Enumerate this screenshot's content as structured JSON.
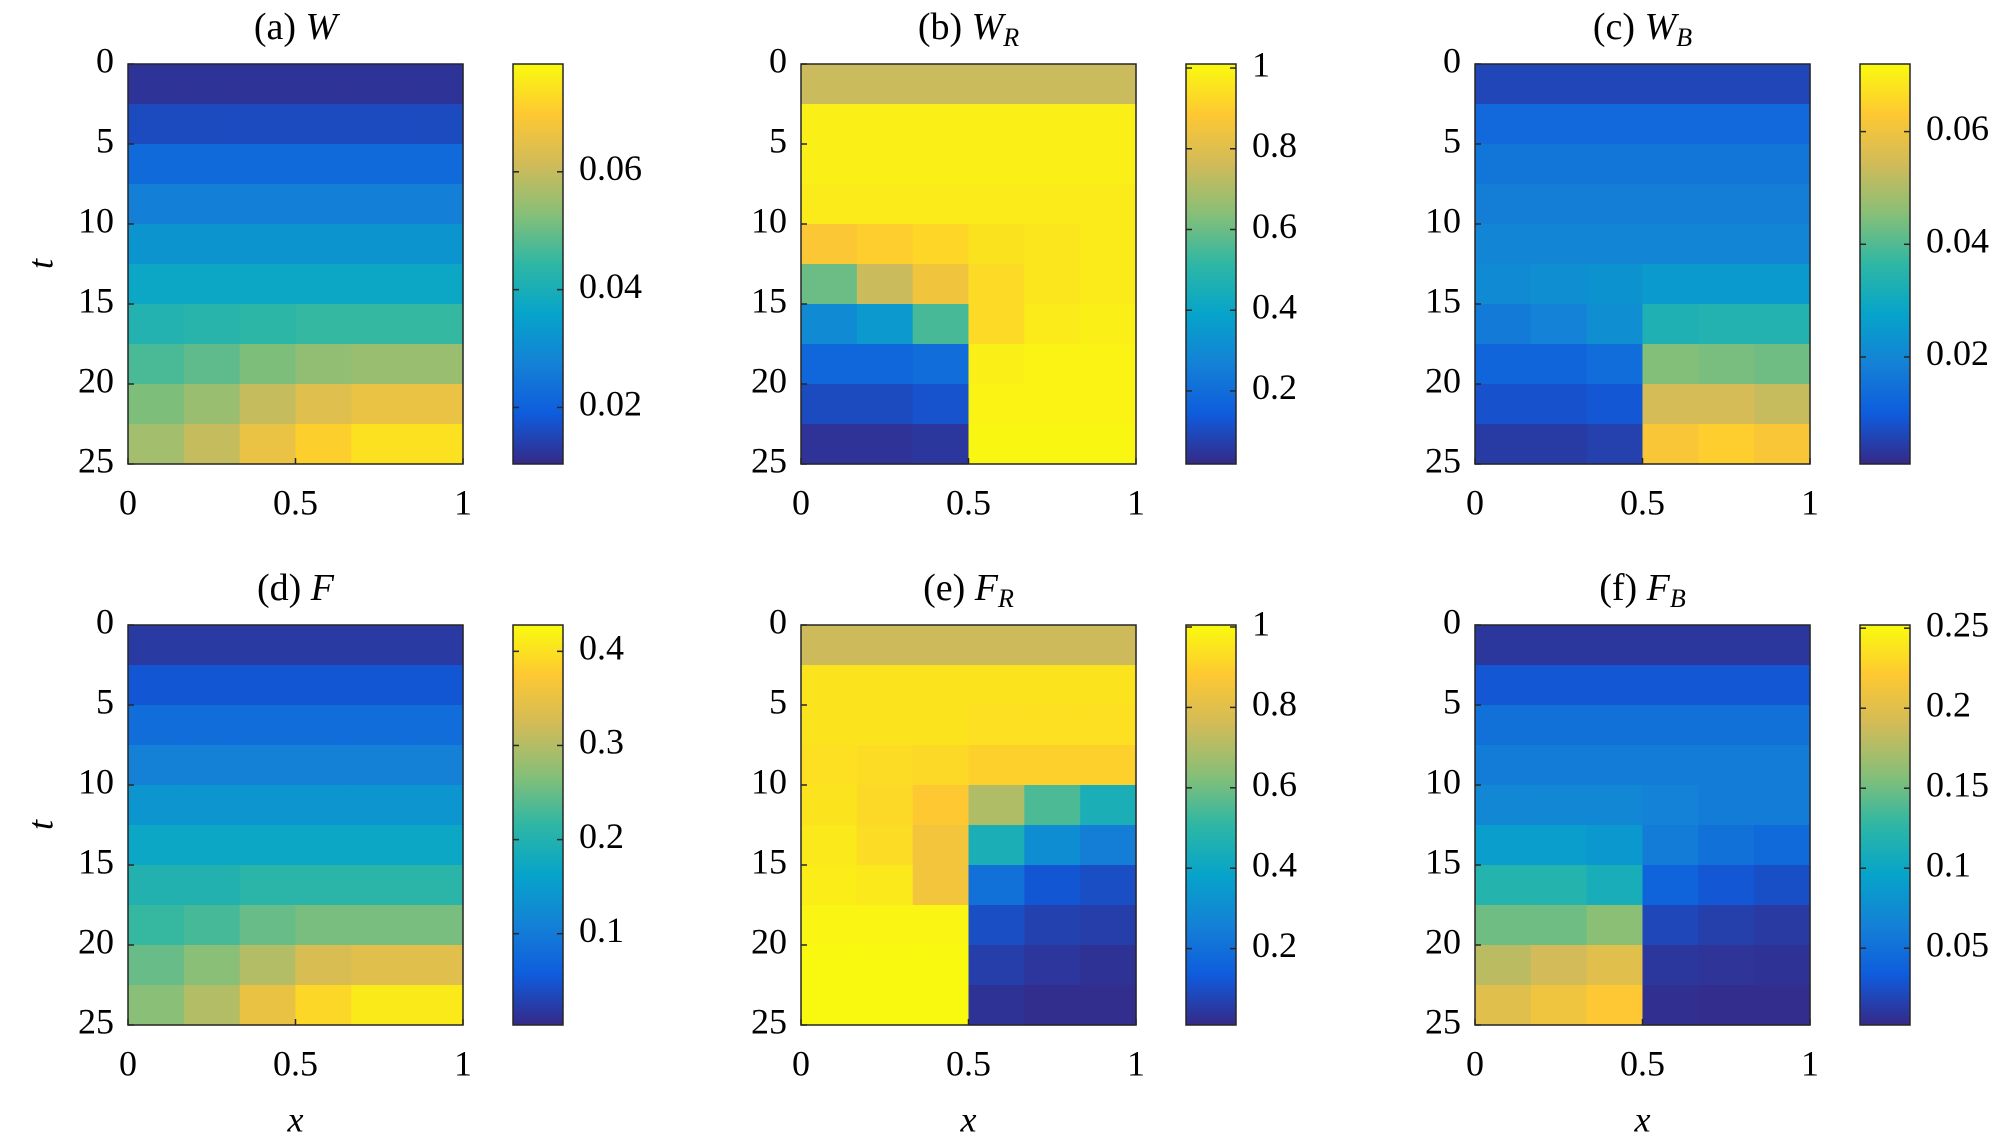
{
  "chart_data": [
    {
      "type": "heatmap",
      "title": {
        "label": "(a)",
        "symbol": "W"
      },
      "ylabel": "t",
      "colormap": "parula",
      "x": [
        0.0833,
        0.25,
        0.4167,
        0.5833,
        0.75,
        0.9167
      ],
      "y": [
        1.25,
        3.75,
        6.25,
        8.75,
        11.25,
        13.75,
        16.25,
        18.75,
        21.25,
        23.75
      ],
      "xlim": [
        0,
        1
      ],
      "ylim": [
        0,
        25
      ],
      "y_reversed": true,
      "xticks": [
        0,
        0.5,
        1
      ],
      "yticks": [
        0,
        5,
        10,
        15,
        20,
        25
      ],
      "clim": [
        0.0104,
        0.0783
      ],
      "cticks": [
        0.02,
        0.04,
        0.06
      ],
      "z": [
        [
          0.012,
          0.012,
          0.012,
          0.012,
          0.012,
          0.012
        ],
        [
          0.016,
          0.016,
          0.016,
          0.016,
          0.016,
          0.016
        ],
        [
          0.022,
          0.022,
          0.022,
          0.022,
          0.022,
          0.022
        ],
        [
          0.027,
          0.027,
          0.027,
          0.027,
          0.027,
          0.027
        ],
        [
          0.032,
          0.032,
          0.032,
          0.032,
          0.032,
          0.032
        ],
        [
          0.037,
          0.037,
          0.037,
          0.037,
          0.037,
          0.037
        ],
        [
          0.042,
          0.043,
          0.044,
          0.045,
          0.045,
          0.045
        ],
        [
          0.047,
          0.049,
          0.052,
          0.054,
          0.055,
          0.055
        ],
        [
          0.052,
          0.055,
          0.06,
          0.064,
          0.066,
          0.066
        ],
        [
          0.056,
          0.06,
          0.066,
          0.071,
          0.074,
          0.074
        ]
      ]
    },
    {
      "type": "heatmap",
      "title": {
        "label": "(b)",
        "symbol": "W",
        "subscript": "R"
      },
      "colormap": "parula",
      "x": [
        0.0833,
        0.25,
        0.4167,
        0.5833,
        0.75,
        0.9167
      ],
      "y": [
        1.25,
        3.75,
        6.25,
        8.75,
        11.25,
        13.75,
        16.25,
        18.75,
        21.25,
        23.75
      ],
      "xlim": [
        0,
        1
      ],
      "ylim": [
        0,
        25
      ],
      "y_reversed": true,
      "xticks": [
        0,
        0.5,
        1
      ],
      "yticks": [
        0,
        5,
        10,
        15,
        20,
        25
      ],
      "clim": [
        0.019,
        1.01
      ],
      "cticks": [
        0.2,
        0.4,
        0.6,
        0.8,
        1
      ],
      "z": [
        [
          0.75,
          0.75,
          0.75,
          0.75,
          0.75,
          0.75
        ],
        [
          0.98,
          0.98,
          0.98,
          0.98,
          0.98,
          0.98
        ],
        [
          0.98,
          0.98,
          0.98,
          0.98,
          0.98,
          0.98
        ],
        [
          0.97,
          0.97,
          0.97,
          0.97,
          0.97,
          0.97
        ],
        [
          0.88,
          0.9,
          0.92,
          0.95,
          0.96,
          0.97
        ],
        [
          0.6,
          0.75,
          0.85,
          0.93,
          0.96,
          0.97
        ],
        [
          0.3,
          0.35,
          0.55,
          0.93,
          0.97,
          0.98
        ],
        [
          0.18,
          0.18,
          0.2,
          0.98,
          0.99,
          0.99
        ],
        [
          0.1,
          0.1,
          0.12,
          0.99,
          0.99,
          0.99
        ],
        [
          0.04,
          0.04,
          0.05,
          1,
          1,
          1
        ]
      ]
    },
    {
      "type": "heatmap",
      "title": {
        "label": "(c)",
        "symbol": "W",
        "subscript": "B"
      },
      "colormap": "parula",
      "x": [
        0.0833,
        0.25,
        0.4167,
        0.5833,
        0.75,
        0.9167
      ],
      "y": [
        1.25,
        3.75,
        6.25,
        8.75,
        11.25,
        13.75,
        16.25,
        18.75,
        21.25,
        23.75
      ],
      "xlim": [
        0,
        1
      ],
      "ylim": [
        0,
        25
      ],
      "y_reversed": true,
      "xticks": [
        0,
        0.5,
        1
      ],
      "yticks": [
        0,
        5,
        10,
        15,
        20,
        25
      ],
      "clim": [
        0.001,
        0.072
      ],
      "cticks": [
        0.02,
        0.04,
        0.06
      ],
      "z": [
        [
          0.006,
          0.006,
          0.006,
          0.006,
          0.006,
          0.006
        ],
        [
          0.013,
          0.013,
          0.013,
          0.013,
          0.013,
          0.013
        ],
        [
          0.016,
          0.016,
          0.016,
          0.016,
          0.016,
          0.016
        ],
        [
          0.018,
          0.018,
          0.018,
          0.018,
          0.018,
          0.018
        ],
        [
          0.02,
          0.02,
          0.02,
          0.02,
          0.02,
          0.02
        ],
        [
          0.021,
          0.022,
          0.023,
          0.025,
          0.025,
          0.025
        ],
        [
          0.017,
          0.019,
          0.022,
          0.033,
          0.034,
          0.034
        ],
        [
          0.012,
          0.012,
          0.014,
          0.045,
          0.044,
          0.043
        ],
        [
          0.008,
          0.008,
          0.009,
          0.055,
          0.055,
          0.053
        ],
        [
          0.004,
          0.004,
          0.005,
          0.062,
          0.064,
          0.062
        ]
      ]
    },
    {
      "type": "heatmap",
      "title": {
        "label": "(d)",
        "symbol": "F"
      },
      "ylabel": "t",
      "xlabel": "x",
      "colormap": "parula",
      "x": [
        0.0833,
        0.25,
        0.4167,
        0.5833,
        0.75,
        0.9167
      ],
      "y": [
        1.25,
        3.75,
        6.25,
        8.75,
        11.25,
        13.75,
        16.25,
        18.75,
        21.25,
        23.75
      ],
      "xlim": [
        0,
        1
      ],
      "ylim": [
        0,
        25
      ],
      "y_reversed": true,
      "xticks": [
        0,
        0.5,
        1
      ],
      "yticks": [
        0,
        5,
        10,
        15,
        20,
        25
      ],
      "clim": [
        0.003,
        0.428
      ],
      "cticks": [
        0.1,
        0.2,
        0.3,
        0.4
      ],
      "z": [
        [
          0.02,
          0.02,
          0.02,
          0.02,
          0.02,
          0.02
        ],
        [
          0.05,
          0.05,
          0.05,
          0.05,
          0.05,
          0.05
        ],
        [
          0.08,
          0.08,
          0.08,
          0.08,
          0.08,
          0.08
        ],
        [
          0.11,
          0.11,
          0.11,
          0.11,
          0.11,
          0.11
        ],
        [
          0.14,
          0.14,
          0.14,
          0.14,
          0.14,
          0.14
        ],
        [
          0.17,
          0.17,
          0.17,
          0.17,
          0.17,
          0.17
        ],
        [
          0.2,
          0.2,
          0.21,
          0.21,
          0.21,
          0.21
        ],
        [
          0.22,
          0.23,
          0.25,
          0.26,
          0.26,
          0.26
        ],
        [
          0.25,
          0.27,
          0.3,
          0.33,
          0.34,
          0.34
        ],
        [
          0.27,
          0.3,
          0.35,
          0.39,
          0.41,
          0.41
        ]
      ]
    },
    {
      "type": "heatmap",
      "title": {
        "label": "(e)",
        "symbol": "F",
        "subscript": "R"
      },
      "xlabel": "x",
      "colormap": "parula",
      "x": [
        0.0833,
        0.25,
        0.4167,
        0.5833,
        0.75,
        0.9167
      ],
      "y": [
        1.25,
        3.75,
        6.25,
        8.75,
        11.25,
        13.75,
        16.25,
        18.75,
        21.25,
        23.75
      ],
      "xlim": [
        0,
        1
      ],
      "ylim": [
        0,
        25
      ],
      "y_reversed": true,
      "xticks": [
        0,
        0.5,
        1
      ],
      "yticks": [
        0,
        5,
        10,
        15,
        20,
        25
      ],
      "clim": [
        0.01,
        1.005
      ],
      "cticks": [
        0.2,
        0.4,
        0.6,
        0.8,
        1
      ],
      "z": [
        [
          0.75,
          0.75,
          0.75,
          0.75,
          0.75,
          0.75
        ],
        [
          0.95,
          0.95,
          0.95,
          0.95,
          0.95,
          0.95
        ],
        [
          0.95,
          0.95,
          0.95,
          0.94,
          0.94,
          0.94
        ],
        [
          0.94,
          0.93,
          0.92,
          0.9,
          0.9,
          0.9
        ],
        [
          0.95,
          0.92,
          0.88,
          0.7,
          0.55,
          0.45
        ],
        [
          0.96,
          0.93,
          0.85,
          0.45,
          0.3,
          0.25
        ],
        [
          0.97,
          0.96,
          0.85,
          0.2,
          0.12,
          0.1
        ],
        [
          0.99,
          0.99,
          0.99,
          0.1,
          0.07,
          0.06
        ],
        [
          1,
          1,
          1,
          0.06,
          0.04,
          0.03
        ],
        [
          1,
          1,
          1,
          0.03,
          0.02,
          0.02
        ]
      ]
    },
    {
      "type": "heatmap",
      "title": {
        "label": "(f)",
        "symbol": "F",
        "subscript": "B"
      },
      "xlabel": "x",
      "colormap": "parula",
      "x": [
        0.0833,
        0.25,
        0.4167,
        0.5833,
        0.75,
        0.9167
      ],
      "y": [
        1.25,
        3.75,
        6.25,
        8.75,
        11.25,
        13.75,
        16.25,
        18.75,
        21.25,
        23.75
      ],
      "xlim": [
        0,
        1
      ],
      "ylim": [
        0,
        25
      ],
      "y_reversed": true,
      "xticks": [
        0,
        0.5,
        1
      ],
      "yticks": [
        0,
        5,
        10,
        15,
        20,
        25
      ],
      "clim": [
        0.002,
        0.252
      ],
      "cticks": [
        0.05,
        0.1,
        0.15,
        0.2,
        0.25
      ],
      "z": [
        [
          0.01,
          0.01,
          0.01,
          0.01,
          0.01,
          0.01
        ],
        [
          0.03,
          0.03,
          0.03,
          0.03,
          0.03,
          0.03
        ],
        [
          0.05,
          0.05,
          0.05,
          0.05,
          0.05,
          0.05
        ],
        [
          0.06,
          0.06,
          0.06,
          0.06,
          0.06,
          0.06
        ],
        [
          0.07,
          0.07,
          0.07,
          0.065,
          0.06,
          0.06
        ],
        [
          0.09,
          0.09,
          0.085,
          0.06,
          0.05,
          0.045
        ],
        [
          0.12,
          0.12,
          0.11,
          0.04,
          0.03,
          0.025
        ],
        [
          0.15,
          0.15,
          0.16,
          0.02,
          0.015,
          0.012
        ],
        [
          0.18,
          0.19,
          0.2,
          0.01,
          0.008,
          0.007
        ],
        [
          0.2,
          0.21,
          0.22,
          0.005,
          0.004,
          0.004
        ]
      ]
    }
  ]
}
